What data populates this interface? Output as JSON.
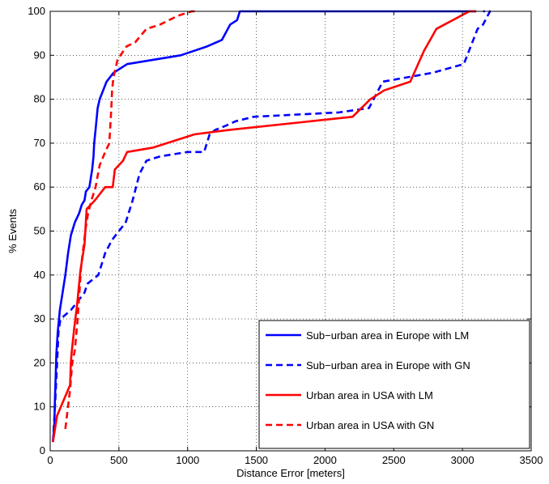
{
  "chart_data": {
    "type": "line",
    "title": "",
    "xlabel": "Distance Error [meters]",
    "ylabel": "% Events",
    "xlim": [
      0,
      3500
    ],
    "ylim": [
      0,
      100
    ],
    "xticks": [
      0,
      500,
      1000,
      1500,
      2000,
      2500,
      3000,
      3500
    ],
    "yticks": [
      0,
      10,
      20,
      30,
      40,
      50,
      60,
      70,
      80,
      90,
      100
    ],
    "grid": true,
    "legend_position": "lower-right",
    "series": [
      {
        "name": "Sub−urban area in Europe with LM",
        "color": "#0000ff",
        "dash": "solid",
        "x": [
          20,
          30,
          35,
          40,
          45,
          55,
          70,
          90,
          110,
          130,
          150,
          180,
          210,
          230,
          250,
          260,
          285,
          305,
          315,
          320,
          330,
          345,
          360,
          410,
          460,
          560,
          950,
          1140,
          1250,
          1310,
          1360,
          1370,
          1380,
          1500,
          3100
        ],
        "y": [
          2,
          6,
          12,
          17,
          22,
          27,
          32,
          36,
          40,
          45,
          49,
          52,
          54,
          56,
          57,
          59,
          60,
          64,
          67,
          70,
          73,
          78,
          80,
          84,
          86,
          88,
          90,
          92,
          93.5,
          97,
          98,
          99,
          100,
          100,
          100
        ]
      },
      {
        "name": "Sub−urban area in Europe with GN",
        "color": "#0000ff",
        "dash": "dashed",
        "x": [
          20,
          35,
          50,
          60,
          75,
          150,
          250,
          270,
          350,
          400,
          450,
          500,
          550,
          600,
          650,
          700,
          800,
          1000,
          1120,
          1160,
          1200,
          1280,
          1350,
          1480,
          2100,
          2320,
          2420,
          2780,
          3010,
          3110,
          3150,
          3200,
          3150
        ],
        "y": [
          2,
          10,
          20,
          27,
          30,
          32,
          36,
          38,
          40,
          45,
          48,
          50,
          52,
          57,
          63,
          66,
          67,
          68,
          68,
          72,
          73,
          74,
          75,
          76,
          77,
          78,
          84,
          86,
          88,
          96,
          97,
          100,
          100
        ]
      },
      {
        "name": "Urban area in USA with LM",
        "color": "#ff0000",
        "dash": "solid",
        "x": [
          20,
          35,
          50,
          145,
          150,
          155,
          175,
          195,
          220,
          250,
          265,
          325,
          400,
          455,
          470,
          530,
          560,
          750,
          1050,
          1300,
          2200,
          2330,
          2430,
          2620,
          2720,
          2810,
          3050,
          3100
        ],
        "y": [
          2,
          5,
          8,
          15,
          20,
          22,
          28,
          33,
          41,
          47,
          55,
          57,
          60,
          60,
          64,
          66,
          68,
          69,
          72,
          73,
          76,
          80,
          82,
          84,
          91,
          96,
          100,
          100
        ]
      },
      {
        "name": "Urban area in USA with GN",
        "color": "#ff0000",
        "dash": "dashed",
        "x": [
          110,
          145,
          160,
          180,
          200,
          225,
          260,
          275,
          300,
          330,
          360,
          400,
          430,
          445,
          450,
          460,
          490,
          555,
          620,
          700,
          800,
          930,
          1030,
          1060
        ],
        "y": [
          5,
          14,
          20,
          23,
          30,
          42,
          51,
          54,
          57,
          60,
          65,
          68,
          70,
          78,
          82,
          85,
          89,
          92,
          93,
          96,
          97,
          99,
          100,
          100
        ]
      }
    ]
  }
}
